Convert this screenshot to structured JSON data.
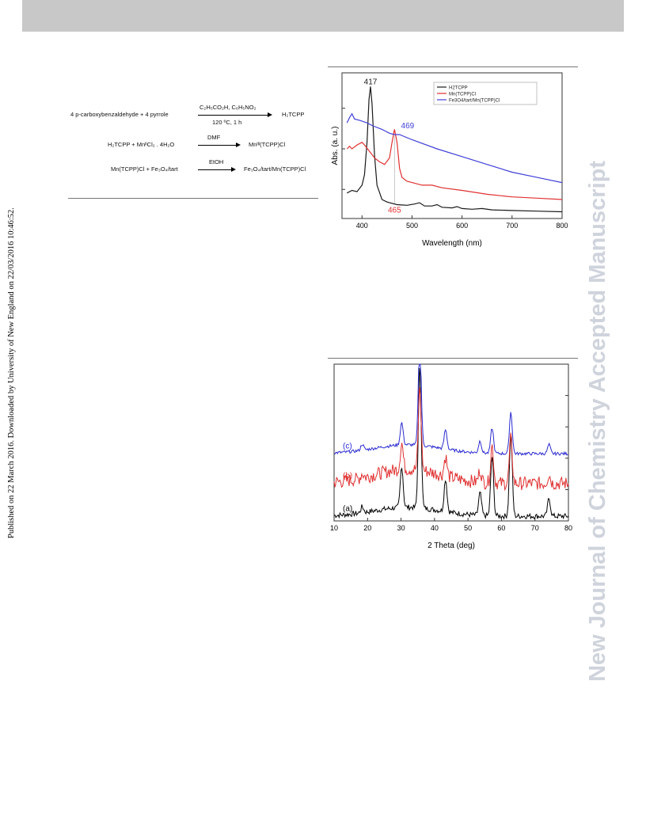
{
  "watermark": "New Journal of Chemistry Accepted Manuscript",
  "published_note": "Published on 22 March 2016. Downloaded by University of New England on 22/03/2016 10:46:52.",
  "scheme": {
    "r1_reactants": "4 p-carboxybenzaldehyde + 4 pyrrole",
    "r1_conditions_top": "C₂H₅CO₂H, C₆H₅NO₂",
    "r1_conditions_bottom": "120 ºC, 1 h",
    "r1_product": "H₂TCPP",
    "r2_reactants": "H₂TCPP + MnᴵᴵCl₂ . 4H₂O",
    "r2_conditions": "DMF",
    "r2_product": "Mnᴵᴵᴵ(TCPP)Cl",
    "r3_reactants": "Mn(TCPP)Cl + Fe₃O₄/tart",
    "r3_conditions": "EtOH",
    "r3_product": "Fe₃O₄/tart/Mn(TCPP)Cl"
  },
  "chart_data": [
    {
      "type": "line",
      "xlabel": "Wavelength (nm)",
      "ylabel": "Abs. (a. u.)",
      "xlim": [
        360,
        800
      ],
      "xticks": [
        "400",
        "500",
        "600",
        "700",
        "800"
      ],
      "legend_position": "top-right",
      "colors": {
        "H2TCPP": "#1a1a1a",
        "MnTCPP": "#e03030",
        "Fe3O4": "#4040d8"
      },
      "series": [
        {
          "name": "H2TCPP",
          "color": "#1a1a1a",
          "points": [
            [
              370,
              0.16
            ],
            [
              380,
              0.18
            ],
            [
              390,
              0.17
            ],
            [
              400,
              0.22
            ],
            [
              405,
              0.3
            ],
            [
              410,
              0.55
            ],
            [
              414,
              0.88
            ],
            [
              417,
              0.98
            ],
            [
              420,
              0.85
            ],
            [
              425,
              0.45
            ],
            [
              430,
              0.22
            ],
            [
              440,
              0.11
            ],
            [
              450,
              0.09
            ],
            [
              470,
              0.07
            ],
            [
              490,
              0.065
            ],
            [
              505,
              0.075
            ],
            [
              515,
              0.085
            ],
            [
              525,
              0.06
            ],
            [
              540,
              0.06
            ],
            [
              550,
              0.07
            ],
            [
              560,
              0.05
            ],
            [
              580,
              0.045
            ],
            [
              590,
              0.055
            ],
            [
              600,
              0.04
            ],
            [
              620,
              0.035
            ],
            [
              640,
              0.04
            ],
            [
              660,
              0.03
            ],
            [
              700,
              0.025
            ],
            [
              750,
              0.02
            ],
            [
              800,
              0.015
            ]
          ]
        },
        {
          "name": "Mn(TCPP)Cl",
          "color": "#e03030",
          "points": [
            [
              370,
              0.5
            ],
            [
              375,
              0.52
            ],
            [
              380,
              0.5
            ],
            [
              390,
              0.53
            ],
            [
              400,
              0.55
            ],
            [
              405,
              0.53
            ],
            [
              415,
              0.48
            ],
            [
              425,
              0.43
            ],
            [
              435,
              0.4
            ],
            [
              445,
              0.38
            ],
            [
              455,
              0.43
            ],
            [
              460,
              0.55
            ],
            [
              465,
              0.65
            ],
            [
              470,
              0.55
            ],
            [
              475,
              0.35
            ],
            [
              480,
              0.28
            ],
            [
              490,
              0.25
            ],
            [
              500,
              0.24
            ],
            [
              520,
              0.22
            ],
            [
              540,
              0.22
            ],
            [
              560,
              0.2
            ],
            [
              600,
              0.18
            ],
            [
              650,
              0.15
            ],
            [
              700,
              0.13
            ],
            [
              750,
              0.12
            ],
            [
              800,
              0.11
            ]
          ]
        },
        {
          "name": "Fe3O4/tart/Mn(TCPP)Cl",
          "color": "#4040d8",
          "points": [
            [
              370,
              0.7
            ],
            [
              375,
              0.74
            ],
            [
              380,
              0.77
            ],
            [
              385,
              0.73
            ],
            [
              395,
              0.72
            ],
            [
              410,
              0.7
            ],
            [
              420,
              0.68
            ],
            [
              440,
              0.65
            ],
            [
              455,
              0.62
            ],
            [
              465,
              0.61
            ],
            [
              475,
              0.61
            ],
            [
              500,
              0.57
            ],
            [
              550,
              0.5
            ],
            [
              600,
              0.44
            ],
            [
              650,
              0.38
            ],
            [
              700,
              0.32
            ],
            [
              750,
              0.28
            ],
            [
              800,
              0.24
            ]
          ]
        }
      ],
      "annotations": [
        {
          "text": "417",
          "x": 417,
          "color": "#1a1a1a"
        },
        {
          "text": "469",
          "x": 469,
          "color": "#4040d8"
        },
        {
          "text": "465",
          "x": 465,
          "color": "#e03030"
        }
      ]
    },
    {
      "type": "line",
      "xlabel": "2 Theta (deg)",
      "ylabel": "",
      "xlim": [
        10,
        80
      ],
      "xticks": [
        "10",
        "20",
        "30",
        "40",
        "50",
        "60",
        "70",
        "80"
      ],
      "series": [
        {
          "name": "(a)",
          "color": "#000000",
          "offset": 0.0,
          "peaks": [
            [
              18.4,
              0.04
            ],
            [
              30.2,
              0.28
            ],
            [
              35.6,
              0.95
            ],
            [
              43.3,
              0.22
            ],
            [
              53.6,
              0.15
            ],
            [
              57.2,
              0.4
            ],
            [
              62.8,
              0.55
            ],
            [
              74.2,
              0.12
            ]
          ]
        },
        {
          "name": "(b)",
          "color": "#e03030",
          "offset": 0.22,
          "peaks": [
            [
              18.4,
              0.03
            ],
            [
              30.2,
              0.18
            ],
            [
              35.6,
              0.55
            ],
            [
              43.3,
              0.13
            ],
            [
              53.6,
              0.08
            ],
            [
              57.2,
              0.25
            ],
            [
              62.8,
              0.3
            ],
            [
              74.2,
              0.06
            ]
          ]
        },
        {
          "name": "(c)",
          "color": "#2a2ad0",
          "offset": 0.42,
          "peaks": [
            [
              18.4,
              0.04
            ],
            [
              30.2,
              0.15
            ],
            [
              35.6,
              0.72
            ],
            [
              43.3,
              0.13
            ],
            [
              53.6,
              0.08
            ],
            [
              57.2,
              0.17
            ],
            [
              62.8,
              0.28
            ],
            [
              74.2,
              0.06
            ]
          ]
        }
      ]
    }
  ]
}
